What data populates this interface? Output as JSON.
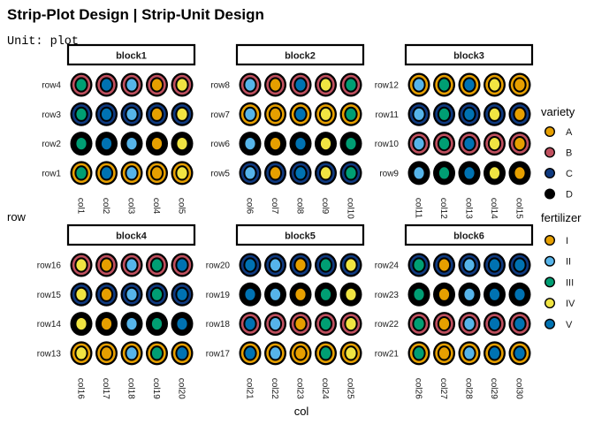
{
  "title": "Strip-Plot Design | Strip-Unit Design",
  "subtitle": "Unit: plot",
  "chart_data": {
    "type": "scatter",
    "xlabel": "col",
    "ylabel": "row",
    "legend_position": "right",
    "grid": false,
    "colors": {
      "variety": {
        "A": "#E69F00",
        "B": "#C0505F",
        "C": "#0F3A80",
        "D": "#000000"
      },
      "fertilizer": {
        "I": "#E69F00",
        "II": "#56B4E9",
        "III": "#009E73",
        "IV": "#F0E442",
        "V": "#0072B2"
      }
    },
    "legend": {
      "variety": {
        "title": "variety",
        "items": [
          "A",
          "B",
          "C",
          "D"
        ]
      },
      "fertilizer": {
        "title": "fertilizer",
        "items": [
          "I",
          "II",
          "III",
          "IV",
          "V"
        ]
      }
    },
    "blocks": [
      {
        "name": "block1",
        "cols": [
          "col1",
          "col2",
          "col3",
          "col4",
          "col5"
        ],
        "fertilizer_by_col": [
          "III",
          "V",
          "II",
          "I",
          "IV"
        ],
        "rows": [
          {
            "label": "row4",
            "variety": "B"
          },
          {
            "label": "row3",
            "variety": "C"
          },
          {
            "label": "row2",
            "variety": "D"
          },
          {
            "label": "row1",
            "variety": "A"
          }
        ]
      },
      {
        "name": "block2",
        "cols": [
          "col6",
          "col7",
          "col8",
          "col9",
          "col10"
        ],
        "fertilizer_by_col": [
          "II",
          "I",
          "V",
          "IV",
          "III"
        ],
        "rows": [
          {
            "label": "row8",
            "variety": "B"
          },
          {
            "label": "row7",
            "variety": "A"
          },
          {
            "label": "row6",
            "variety": "D"
          },
          {
            "label": "row5",
            "variety": "C"
          }
        ]
      },
      {
        "name": "block3",
        "cols": [
          "col11",
          "col12",
          "col13",
          "col14",
          "col15"
        ],
        "fertilizer_by_col": [
          "II",
          "III",
          "V",
          "IV",
          "I"
        ],
        "rows": [
          {
            "label": "row12",
            "variety": "A"
          },
          {
            "label": "row11",
            "variety": "C"
          },
          {
            "label": "row10",
            "variety": "B"
          },
          {
            "label": "row9",
            "variety": "D"
          }
        ]
      },
      {
        "name": "block4",
        "cols": [
          "col16",
          "col17",
          "col18",
          "col19",
          "col20"
        ],
        "fertilizer_by_col": [
          "IV",
          "I",
          "II",
          "III",
          "V"
        ],
        "rows": [
          {
            "label": "row16",
            "variety": "B"
          },
          {
            "label": "row15",
            "variety": "C"
          },
          {
            "label": "row14",
            "variety": "D"
          },
          {
            "label": "row13",
            "variety": "A"
          }
        ]
      },
      {
        "name": "block5",
        "cols": [
          "col21",
          "col22",
          "col23",
          "col24",
          "col25"
        ],
        "fertilizer_by_col": [
          "V",
          "II",
          "I",
          "III",
          "IV"
        ],
        "rows": [
          {
            "label": "row20",
            "variety": "C"
          },
          {
            "label": "row19",
            "variety": "D"
          },
          {
            "label": "row18",
            "variety": "B"
          },
          {
            "label": "row17",
            "variety": "A"
          }
        ]
      },
      {
        "name": "block6",
        "cols": [
          "col26",
          "col27",
          "col28",
          "col29",
          "col30"
        ],
        "fertilizer_by_col": [
          "III",
          "I",
          "II",
          "V",
          "V"
        ],
        "rows": [
          {
            "label": "row24",
            "variety": "C"
          },
          {
            "label": "row23",
            "variety": "D"
          },
          {
            "label": "row22",
            "variety": "B"
          },
          {
            "label": "row21",
            "variety": "A"
          }
        ]
      }
    ]
  }
}
